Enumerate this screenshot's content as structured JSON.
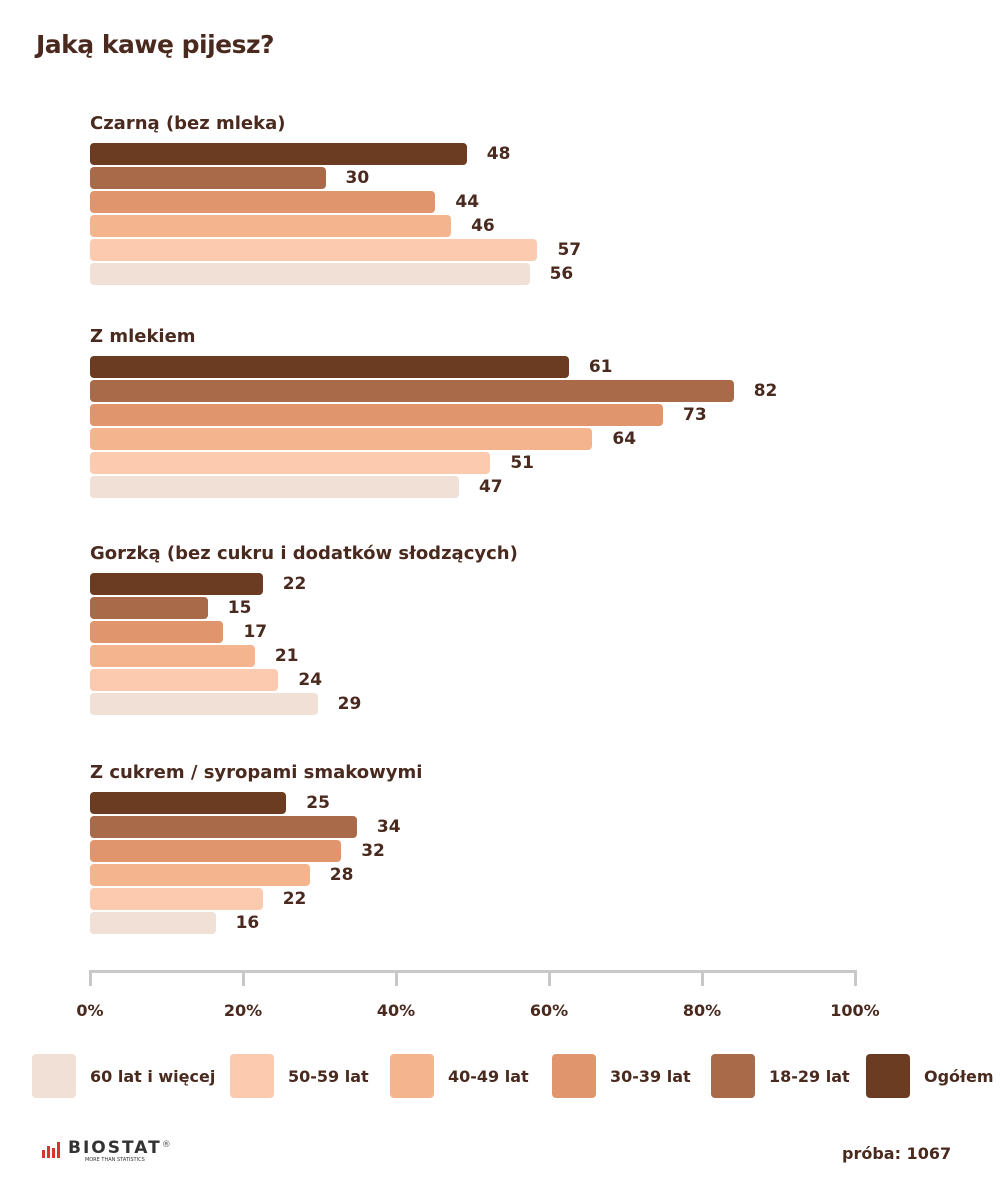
{
  "chart_data": {
    "type": "bar",
    "orientation": "horizontal",
    "title": "Jaką kawę pijesz?",
    "categories": [
      "Czarną (bez mleka)",
      "Z mlekiem",
      "Gorzką (bez cukru i dodatków słodzących)",
      "Z cukrem / syropami smakowymi"
    ],
    "series": [
      {
        "name": "Ogółem",
        "color": "#6b3c22",
        "values": [
          48,
          61,
          22,
          25
        ]
      },
      {
        "name": "18-29 lat",
        "color": "#a86a48",
        "values": [
          30,
          82,
          15,
          34
        ]
      },
      {
        "name": "30-39 lat",
        "color": "#e0956c",
        "values": [
          44,
          73,
          17,
          32
        ]
      },
      {
        "name": "40-49 lat",
        "color": "#f3b48e",
        "values": [
          46,
          64,
          21,
          28
        ]
      },
      {
        "name": "50-59 lat",
        "color": "#fccbaf",
        "values": [
          57,
          51,
          24,
          22
        ]
      },
      {
        "name": "60 lat i więcej",
        "color": "#f0e0d6",
        "values": [
          56,
          47,
          29,
          16
        ]
      }
    ],
    "xlim": [
      0,
      100
    ],
    "xticks": [
      "0%",
      "20%",
      "40%",
      "60%",
      "80%",
      "100%"
    ],
    "legend_order": [
      "60 lat i więcej",
      "50-59 lat",
      "40-49 lat",
      "30-39 lat",
      "18-29 lat",
      "Ogółem"
    ],
    "legend_position": "bottom",
    "grid": false
  },
  "footer": {
    "logo": "BIOSTAT",
    "logo_tagline": "MORE THAN STATISTICS",
    "sample": "próba: 1067"
  }
}
